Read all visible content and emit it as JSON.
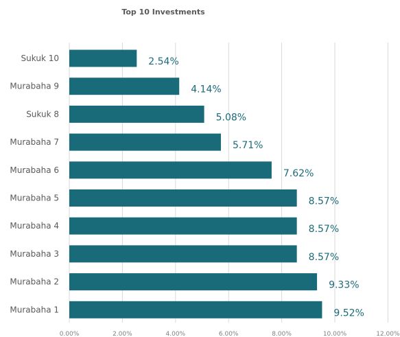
{
  "chart_data": {
    "type": "bar",
    "orientation": "horizontal",
    "title": "Top 10 Investments",
    "categories": [
      "Sukuk 10",
      "Murabaha 9",
      "Sukuk 8",
      "Murabaha 7",
      "Murabaha 6",
      "Murabaha 5",
      "Murabaha 4",
      "Murabaha 3",
      "Murabaha 2",
      "Murabaha 1"
    ],
    "values": [
      2.54,
      4.14,
      5.08,
      5.71,
      7.62,
      8.57,
      8.57,
      8.57,
      9.33,
      9.52
    ],
    "data_labels": [
      "2.54%",
      "4.14%",
      "5.08%",
      "5.71%",
      "7.62%",
      "8.57%",
      "8.57%",
      "8.57%",
      "9.33%",
      "9.52%"
    ],
    "xlim": [
      0,
      12
    ],
    "x_ticks": [
      "0.00%",
      "2.00%",
      "4.00%",
      "6.00%",
      "8.00%",
      "10.00%",
      "12.00%"
    ],
    "grid": true,
    "legend": "none",
    "bar_color": "#1a6b7a",
    "grid_color": "#d9d9d9"
  }
}
